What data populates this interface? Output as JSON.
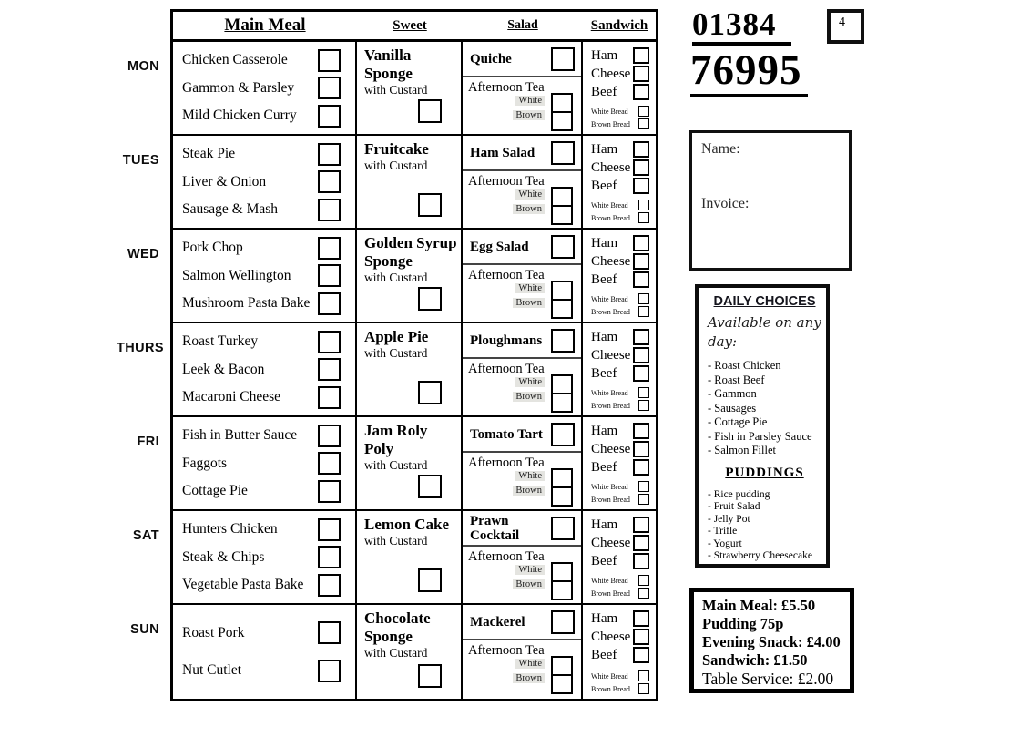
{
  "table": {
    "columns": {
      "main": "Main Meal",
      "sweet": "Sweet",
      "salad": "Salad",
      "sandwich": "Sandwich"
    },
    "days": [
      {
        "label": "MON",
        "mains": [
          "Chicken Casserole",
          "Gammon & Parsley",
          "Mild Chicken Curry"
        ],
        "sweet_name": "Vanilla Sponge",
        "sweet_sub": "with Custard",
        "salad": "Quiche"
      },
      {
        "label": "TUES",
        "mains": [
          "Steak Pie",
          "Liver & Onion",
          "Sausage & Mash"
        ],
        "sweet_name": "Fruitcake",
        "sweet_sub": "with Custard",
        "salad": "Ham Salad"
      },
      {
        "label": "WED",
        "mains": [
          "Pork Chop",
          "Salmon Wellington",
          "Mushroom Pasta Bake"
        ],
        "sweet_name": "Golden Syrup Sponge",
        "sweet_sub": "with Custard",
        "salad": "Egg Salad"
      },
      {
        "label": "THURS",
        "mains": [
          "Roast Turkey",
          "Leek & Bacon",
          "Macaroni Cheese"
        ],
        "sweet_name": "Apple Pie",
        "sweet_sub": "with Custard",
        "salad": "Ploughmans"
      },
      {
        "label": "FRI",
        "mains": [
          "Fish in Butter Sauce",
          "Faggots",
          "Cottage Pie"
        ],
        "sweet_name": "Jam Roly Poly",
        "sweet_sub": "with Custard",
        "salad": "Tomato Tart"
      },
      {
        "label": "SAT",
        "mains": [
          "Hunters Chicken",
          "Steak & Chips",
          "Vegetable Pasta Bake"
        ],
        "sweet_name": "Lemon Cake",
        "sweet_sub": "with Custard",
        "salad": "Prawn Cocktail"
      },
      {
        "label": "SUN",
        "mains": [
          "Roast Pork",
          "Nut Cutlet"
        ],
        "sweet_name": "Chocolate Sponge",
        "sweet_sub": "with Custard",
        "salad": "Mackerel"
      }
    ],
    "salad_common": {
      "afternoon_tea": "Afternoon Tea",
      "white": "White",
      "brown": "Brown"
    },
    "sandwich_common": {
      "fillings": [
        "Ham",
        "Cheese",
        "Beef"
      ],
      "breads": [
        "White Bread",
        "Brown Bread"
      ]
    }
  },
  "contact": {
    "phone_line1": "01384",
    "phone_line2": "76995",
    "page_number": "4"
  },
  "order_box": {
    "name_label": "Name:",
    "invoice_label": "Invoice:"
  },
  "daily_choices": {
    "title": "DAILY CHOICES",
    "subtitle": "Available on any day:",
    "items": [
      "- Roast Chicken",
      "- Roast Beef",
      "- Gammon",
      "- Sausages",
      "- Cottage Pie",
      "- Fish in Parsley Sauce",
      "- Salmon Fillet"
    ],
    "puddings_title": "PUDDINGS",
    "puddings": [
      "- Rice pudding",
      "- Fruit Salad",
      "- Jelly Pot",
      "- Trifle",
      "- Yogurt",
      "- Strawberry Cheesecake"
    ]
  },
  "prices": {
    "line1": "Main Meal: £5.50",
    "line2": "Pudding 75p",
    "line3": "Evening Snack: £4.00",
    "line4": "Sandwich: £1.50",
    "line5": "Table Service: £2.00"
  }
}
